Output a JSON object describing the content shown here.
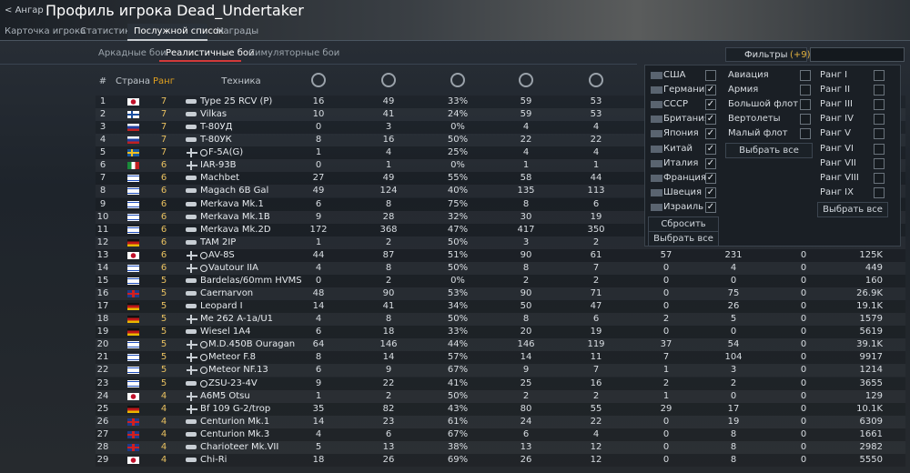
{
  "header": {
    "back": "Ангар",
    "title": "Профиль игрока Dead_Undertaker"
  },
  "tabs": [
    "Карточка игрока",
    "Статистика",
    "Послужной список",
    "Награды"
  ],
  "active_tab": 2,
  "mode_tabs": [
    "Аркадные бои",
    "Реалистичные бои",
    "Симуляторные бои"
  ],
  "active_mode": 1,
  "table": {
    "headers": [
      "#",
      "Страна",
      "Ранг",
      "Техника"
    ],
    "rows": [
      [
        1,
        7,
        "Type 25 RCV (P)",
        16,
        49,
        "33%",
        59,
        53
      ],
      [
        2,
        7,
        "Vilkas",
        10,
        41,
        "24%",
        59,
        53
      ],
      [
        3,
        7,
        "T-80УД",
        0,
        3,
        "0%",
        4,
        4
      ],
      [
        4,
        7,
        "T-80УК",
        8,
        16,
        "50%",
        22,
        22
      ],
      [
        5,
        7,
        "F-5A(G)",
        1,
        4,
        "25%",
        4,
        4
      ],
      [
        6,
        6,
        "IAR-93B",
        0,
        1,
        "0%",
        1,
        1
      ],
      [
        7,
        6,
        "Machbet",
        27,
        49,
        "55%",
        58,
        44
      ],
      [
        8,
        6,
        "Magach 6B Gal",
        49,
        124,
        "40%",
        135,
        113
      ],
      [
        9,
        6,
        "Merkava Mk.1",
        6,
        8,
        "75%",
        8,
        6
      ],
      [
        10,
        6,
        "Merkava Mk.1B",
        9,
        28,
        "32%",
        30,
        19
      ],
      [
        11,
        6,
        "Merkava Mk.2D",
        172,
        368,
        "47%",
        417,
        350
      ],
      [
        12,
        6,
        "TAM 2IP",
        1,
        2,
        "50%",
        3,
        2
      ],
      [
        13,
        6,
        "AV-8S",
        44,
        87,
        "51%",
        90,
        61,
        57,
        231,
        0,
        "125K"
      ],
      [
        14,
        6,
        "Vautour IIA",
        4,
        8,
        "50%",
        8,
        7,
        0,
        4,
        0,
        449
      ],
      [
        15,
        5,
        "Bardelas/60mm HVMS",
        0,
        2,
        "0%",
        2,
        2,
        0,
        0,
        0,
        160
      ],
      [
        16,
        5,
        "Caernarvon",
        48,
        90,
        "53%",
        90,
        71,
        0,
        75,
        0,
        "26.9K"
      ],
      [
        17,
        5,
        "Leopard I",
        14,
        41,
        "34%",
        50,
        47,
        0,
        26,
        0,
        "19.1K"
      ],
      [
        18,
        5,
        "Me 262 A-1a/U1",
        4,
        8,
        "50%",
        8,
        6,
        2,
        5,
        0,
        1579
      ],
      [
        19,
        5,
        "Wiesel 1A4",
        6,
        18,
        "33%",
        20,
        19,
        0,
        0,
        0,
        5619
      ],
      [
        20,
        5,
        "M.D.450B Ouragan",
        64,
        146,
        "44%",
        146,
        119,
        37,
        54,
        0,
        "39.1K"
      ],
      [
        21,
        5,
        "Meteor F.8",
        8,
        14,
        "57%",
        14,
        11,
        7,
        104,
        0,
        9917
      ],
      [
        22,
        5,
        "Meteor NF.13",
        6,
        9,
        "67%",
        9,
        7,
        1,
        3,
        0,
        1214
      ],
      [
        23,
        5,
        "ZSU-23-4V",
        9,
        22,
        "41%",
        25,
        16,
        2,
        2,
        0,
        3655
      ],
      [
        24,
        4,
        "A6M5 Otsu",
        1,
        2,
        "50%",
        2,
        2,
        1,
        0,
        0,
        129
      ],
      [
        25,
        4,
        "Bf 109 G-2/trop",
        35,
        82,
        "43%",
        80,
        55,
        29,
        17,
        0,
        "10.1K"
      ],
      [
        26,
        4,
        "Centurion Mk.1",
        14,
        23,
        "61%",
        24,
        22,
        0,
        19,
        0,
        6309
      ],
      [
        27,
        4,
        "Centurion Mk.3",
        4,
        6,
        "67%",
        6,
        4,
        0,
        8,
        0,
        1661
      ],
      [
        28,
        4,
        "Charioteer Mk.VII",
        5,
        13,
        "38%",
        13,
        12,
        0,
        8,
        0,
        2982
      ],
      [
        29,
        4,
        "Chi-Ri",
        18,
        26,
        "69%",
        26,
        12,
        0,
        8,
        0,
        5550
      ]
    ]
  },
  "filters": {
    "button": "Фильтры",
    "count": "(+9)",
    "countries": [
      {
        "label": "США",
        "checked": false
      },
      {
        "label": "Германия",
        "checked": true
      },
      {
        "label": "СССР",
        "checked": true
      },
      {
        "label": "Британия",
        "checked": true
      },
      {
        "label": "Япония",
        "checked": true
      },
      {
        "label": "Китай",
        "checked": true
      },
      {
        "label": "Италия",
        "checked": true
      },
      {
        "label": "Франция",
        "checked": true
      },
      {
        "label": "Швеция",
        "checked": true
      },
      {
        "label": "Израиль",
        "checked": true
      }
    ],
    "country_buttons": [
      "Сбросить",
      "Выбрать все"
    ],
    "types": [
      {
        "label": "Авиация",
        "checked": false
      },
      {
        "label": "Армия",
        "checked": false
      },
      {
        "label": "Большой флот",
        "checked": false
      },
      {
        "label": "Вертолеты",
        "checked": false
      },
      {
        "label": "Малый флот",
        "checked": false
      }
    ],
    "type_button": "Выбрать все",
    "ranks": [
      {
        "label": "Ранг I",
        "checked": false
      },
      {
        "label": "Ранг II",
        "checked": false
      },
      {
        "label": "Ранг III",
        "checked": false
      },
      {
        "label": "Ранг IV",
        "checked": false
      },
      {
        "label": "Ранг V",
        "checked": false
      },
      {
        "label": "Ранг VI",
        "checked": false
      },
      {
        "label": "Ранг VII",
        "checked": false
      },
      {
        "label": "Ранг VIII",
        "checked": false
      },
      {
        "label": "Ранг IX",
        "checked": false
      }
    ],
    "rank_button": "Выбрать все"
  }
}
